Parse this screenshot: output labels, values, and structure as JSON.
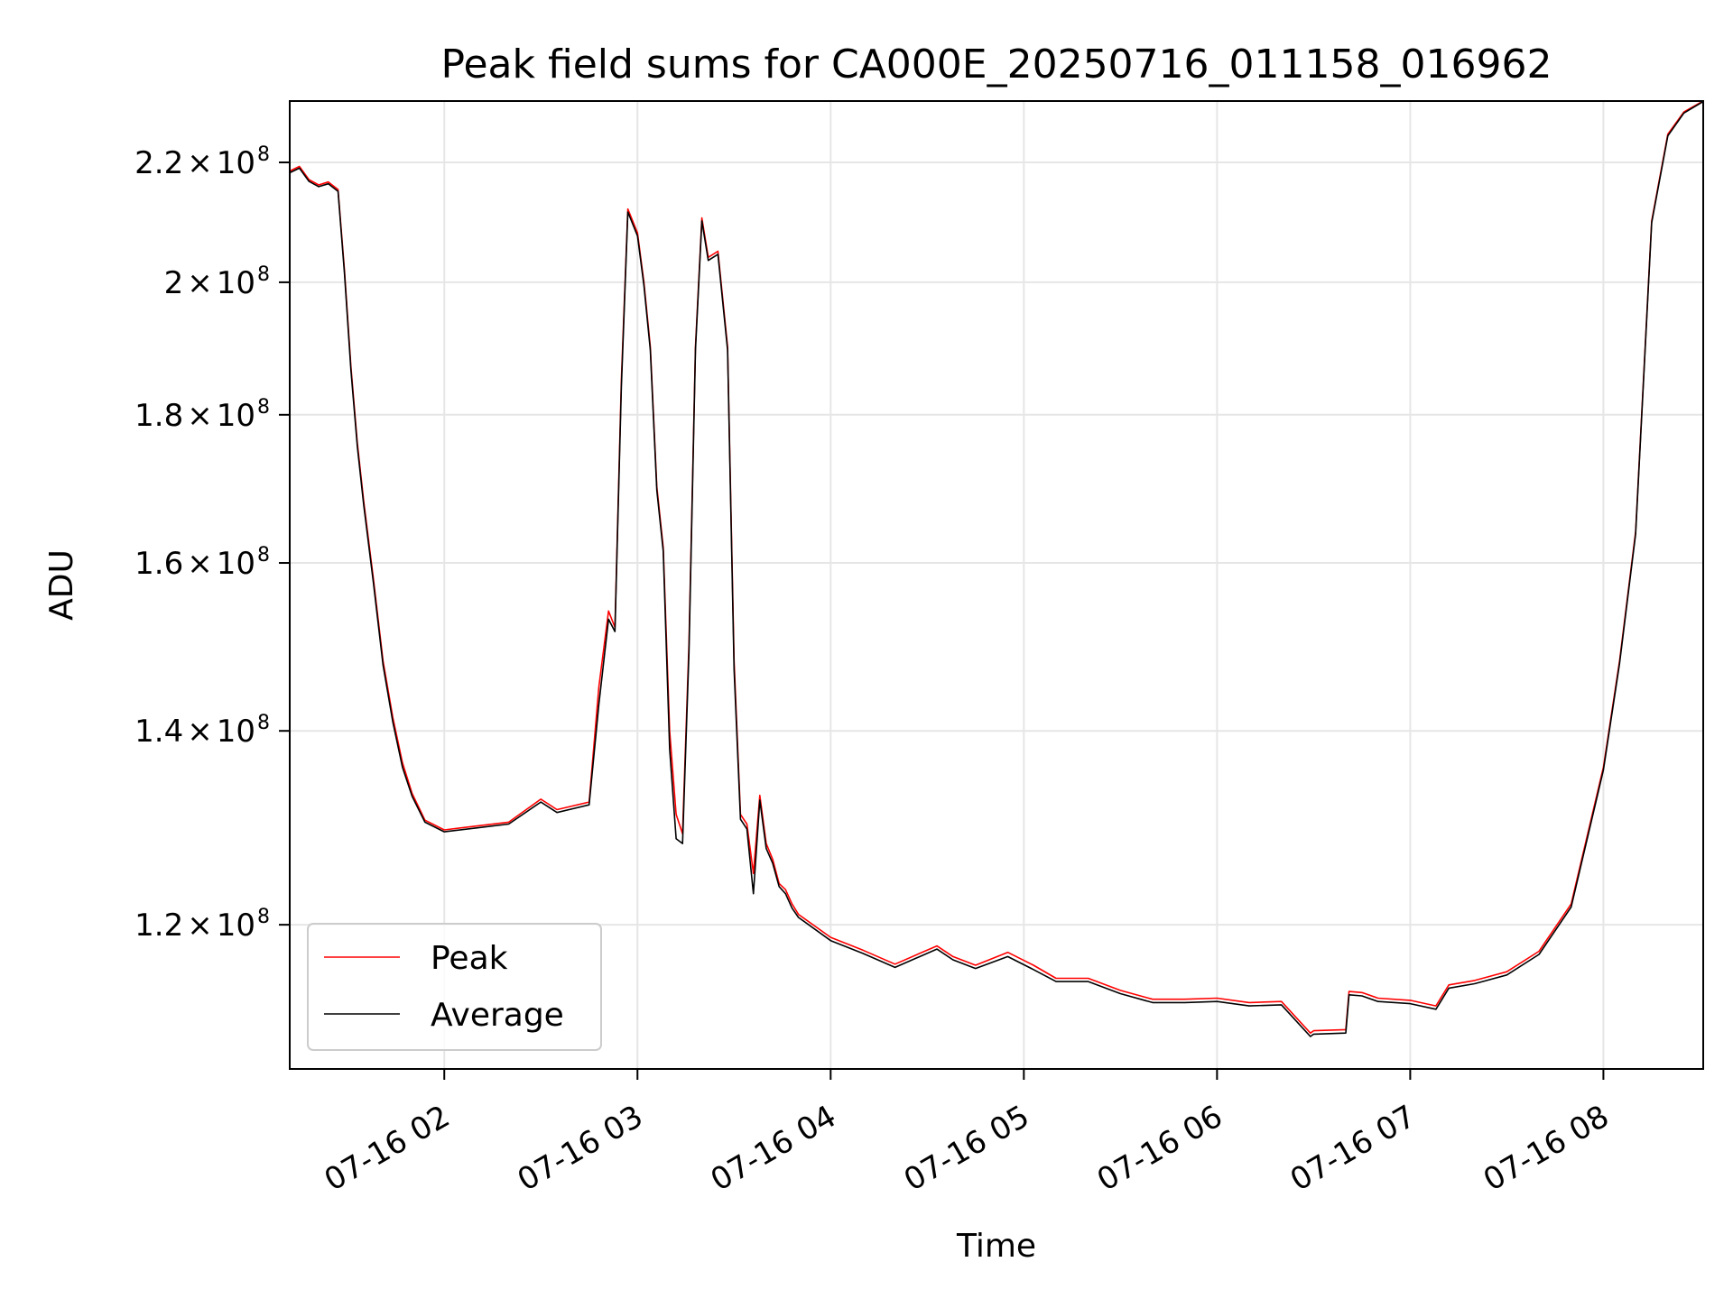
{
  "chart_data": {
    "type": "line",
    "title": "Peak field sums for CA000E_20250716_011158_016962",
    "xlabel": "Time",
    "ylabel": "ADU",
    "y_scale": "log",
    "grid": true,
    "legend_position": "lower-left",
    "xlim": [
      "2025-07-16 01:12",
      "2025-07-16 08:31"
    ],
    "ylim": [
      107000000,
      231000000
    ],
    "x_ticks": [
      {
        "value": "2025-07-16 02:00",
        "label": "07-16 02"
      },
      {
        "value": "2025-07-16 03:00",
        "label": "07-16 03"
      },
      {
        "value": "2025-07-16 04:00",
        "label": "07-16 04"
      },
      {
        "value": "2025-07-16 05:00",
        "label": "07-16 05"
      },
      {
        "value": "2025-07-16 06:00",
        "label": "07-16 06"
      },
      {
        "value": "2025-07-16 07:00",
        "label": "07-16 07"
      },
      {
        "value": "2025-07-16 08:00",
        "label": "07-16 08"
      }
    ],
    "y_ticks": [
      {
        "value": 120000000,
        "mantissa": "1.2",
        "times": "×",
        "base": "10",
        "exp": "8"
      },
      {
        "value": 140000000,
        "mantissa": "1.4",
        "times": "×",
        "base": "10",
        "exp": "8"
      },
      {
        "value": 160000000,
        "mantissa": "1.6",
        "times": "×",
        "base": "10",
        "exp": "8"
      },
      {
        "value": 180000000,
        "mantissa": "1.8",
        "times": "×",
        "base": "10",
        "exp": "8"
      },
      {
        "value": 200000000,
        "mantissa": "2",
        "times": "×",
        "base": "10",
        "exp": "8"
      },
      {
        "value": 220000000,
        "mantissa": "2.2",
        "times": "×",
        "base": "10",
        "exp": "8"
      }
    ],
    "series": [
      {
        "name": "Peak",
        "color": "#ff0000",
        "x": [
          "2025-07-16 01:12",
          "2025-07-16 01:15",
          "2025-07-16 01:18",
          "2025-07-16 01:21",
          "2025-07-16 01:24",
          "2025-07-16 01:27",
          "2025-07-16 01:29",
          "2025-07-16 01:31",
          "2025-07-16 01:33",
          "2025-07-16 01:35",
          "2025-07-16 01:38",
          "2025-07-16 01:41",
          "2025-07-16 01:44",
          "2025-07-16 01:47",
          "2025-07-16 01:50",
          "2025-07-16 01:54",
          "2025-07-16 02:00",
          "2025-07-16 02:10",
          "2025-07-16 02:20",
          "2025-07-16 02:30",
          "2025-07-16 02:35",
          "2025-07-16 02:45",
          "2025-07-16 02:48",
          "2025-07-16 02:51",
          "2025-07-16 02:53",
          "2025-07-16 02:55",
          "2025-07-16 02:57",
          "2025-07-16 03:00",
          "2025-07-16 03:02",
          "2025-07-16 03:04",
          "2025-07-16 03:06",
          "2025-07-16 03:08",
          "2025-07-16 03:10",
          "2025-07-16 03:12",
          "2025-07-16 03:14",
          "2025-07-16 03:16",
          "2025-07-16 03:18",
          "2025-07-16 03:20",
          "2025-07-16 03:22",
          "2025-07-16 03:25",
          "2025-07-16 03:28",
          "2025-07-16 03:30",
          "2025-07-16 03:32",
          "2025-07-16 03:34",
          "2025-07-16 03:36",
          "2025-07-16 03:38",
          "2025-07-16 03:40",
          "2025-07-16 03:42",
          "2025-07-16 03:44",
          "2025-07-16 03:46",
          "2025-07-16 03:48",
          "2025-07-16 03:50",
          "2025-07-16 04:00",
          "2025-07-16 04:10",
          "2025-07-16 04:20",
          "2025-07-16 04:33",
          "2025-07-16 04:38",
          "2025-07-16 04:45",
          "2025-07-16 04:55",
          "2025-07-16 05:03",
          "2025-07-16 05:10",
          "2025-07-16 05:20",
          "2025-07-16 05:30",
          "2025-07-16 05:40",
          "2025-07-16 05:50",
          "2025-07-16 06:00",
          "2025-07-16 06:10",
          "2025-07-16 06:20",
          "2025-07-16 06:29",
          "2025-07-16 06:30",
          "2025-07-16 06:40",
          "2025-07-16 06:41",
          "2025-07-16 06:45",
          "2025-07-16 06:50",
          "2025-07-16 07:00",
          "2025-07-16 07:08",
          "2025-07-16 07:12",
          "2025-07-16 07:20",
          "2025-07-16 07:30",
          "2025-07-16 07:40",
          "2025-07-16 07:50",
          "2025-07-16 08:00",
          "2025-07-16 08:05",
          "2025-07-16 08:10",
          "2025-07-16 08:15",
          "2025-07-16 08:20",
          "2025-07-16 08:25",
          "2025-07-16 08:31"
        ],
        "y": [
          218500000,
          219300000,
          217000000,
          216100000,
          216600000,
          215300000,
          202000000,
          187000000,
          176000000,
          168000000,
          158000000,
          148000000,
          141500000,
          136500000,
          133200000,
          130400000,
          129400000,
          129800000,
          130200000,
          132600000,
          131500000,
          132300000,
          145000000,
          154000000,
          152000000,
          185000000,
          212000000,
          208000000,
          200000000,
          190000000,
          170000000,
          162000000,
          140000000,
          131000000,
          129000000,
          150000000,
          190000000,
          210500000,
          204000000,
          205000000,
          190000000,
          148000000,
          131000000,
          130000000,
          125000000,
          133000000,
          128000000,
          126400000,
          124000000,
          123400000,
          122000000,
          121000000,
          118800000,
          117600000,
          116300000,
          118000000,
          117000000,
          116200000,
          117400000,
          116200000,
          115000000,
          115000000,
          113900000,
          113100000,
          113100000,
          113200000,
          112800000,
          112900000,
          110100000,
          110300000,
          110400000,
          113800000,
          113700000,
          113200000,
          113000000,
          112500000,
          114400000,
          114800000,
          115600000,
          117500000,
          122000000,
          136000000,
          148000000,
          164000000,
          210000000,
          225000000,
          229000000,
          231000000
        ]
      },
      {
        "name": "Average",
        "color": "#000000",
        "x": [
          "2025-07-16 01:12",
          "2025-07-16 01:15",
          "2025-07-16 01:18",
          "2025-07-16 01:21",
          "2025-07-16 01:24",
          "2025-07-16 01:27",
          "2025-07-16 01:29",
          "2025-07-16 01:31",
          "2025-07-16 01:33",
          "2025-07-16 01:35",
          "2025-07-16 01:38",
          "2025-07-16 01:41",
          "2025-07-16 01:44",
          "2025-07-16 01:47",
          "2025-07-16 01:50",
          "2025-07-16 01:54",
          "2025-07-16 02:00",
          "2025-07-16 02:10",
          "2025-07-16 02:20",
          "2025-07-16 02:30",
          "2025-07-16 02:35",
          "2025-07-16 02:45",
          "2025-07-16 02:48",
          "2025-07-16 02:51",
          "2025-07-16 02:53",
          "2025-07-16 02:55",
          "2025-07-16 02:57",
          "2025-07-16 03:00",
          "2025-07-16 03:02",
          "2025-07-16 03:04",
          "2025-07-16 03:06",
          "2025-07-16 03:08",
          "2025-07-16 03:10",
          "2025-07-16 03:12",
          "2025-07-16 03:14",
          "2025-07-16 03:16",
          "2025-07-16 03:18",
          "2025-07-16 03:20",
          "2025-07-16 03:22",
          "2025-07-16 03:25",
          "2025-07-16 03:28",
          "2025-07-16 03:30",
          "2025-07-16 03:32",
          "2025-07-16 03:34",
          "2025-07-16 03:36",
          "2025-07-16 03:38",
          "2025-07-16 03:40",
          "2025-07-16 03:42",
          "2025-07-16 03:44",
          "2025-07-16 03:46",
          "2025-07-16 03:48",
          "2025-07-16 03:50",
          "2025-07-16 04:00",
          "2025-07-16 04:10",
          "2025-07-16 04:20",
          "2025-07-16 04:33",
          "2025-07-16 04:38",
          "2025-07-16 04:45",
          "2025-07-16 04:55",
          "2025-07-16 05:03",
          "2025-07-16 05:10",
          "2025-07-16 05:20",
          "2025-07-16 05:30",
          "2025-07-16 05:40",
          "2025-07-16 05:50",
          "2025-07-16 06:00",
          "2025-07-16 06:10",
          "2025-07-16 06:20",
          "2025-07-16 06:29",
          "2025-07-16 06:30",
          "2025-07-16 06:40",
          "2025-07-16 06:41",
          "2025-07-16 06:45",
          "2025-07-16 06:50",
          "2025-07-16 07:00",
          "2025-07-16 07:08",
          "2025-07-16 07:12",
          "2025-07-16 07:20",
          "2025-07-16 07:30",
          "2025-07-16 07:40",
          "2025-07-16 07:50",
          "2025-07-16 08:00",
          "2025-07-16 08:05",
          "2025-07-16 08:10",
          "2025-07-16 08:15",
          "2025-07-16 08:20",
          "2025-07-16 08:25",
          "2025-07-16 08:31"
        ],
        "y": [
          218200000,
          219000000,
          216700000,
          215800000,
          216300000,
          215000000,
          201500000,
          186500000,
          175500000,
          167500000,
          157500000,
          147500000,
          141000000,
          136000000,
          132900000,
          130200000,
          129200000,
          129600000,
          130000000,
          132300000,
          131200000,
          132000000,
          143000000,
          153000000,
          151500000,
          184000000,
          211500000,
          207500000,
          199500000,
          189500000,
          169500000,
          161500000,
          138000000,
          128500000,
          128000000,
          149000000,
          189500000,
          210000000,
          203500000,
          204500000,
          189500000,
          147000000,
          130500000,
          129500000,
          123000000,
          132500000,
          127500000,
          126000000,
          123700000,
          123000000,
          121600000,
          120700000,
          118500000,
          117300000,
          116000000,
          117700000,
          116700000,
          115900000,
          117000000,
          115800000,
          114700000,
          114700000,
          113600000,
          112800000,
          112800000,
          112900000,
          112500000,
          112600000,
          109800000,
          110000000,
          110100000,
          113500000,
          113400000,
          112900000,
          112700000,
          112200000,
          114100000,
          114500000,
          115300000,
          117200000,
          121700000,
          135700000,
          147700000,
          163700000,
          209700000,
          224700000,
          228800000,
          230900000
        ]
      }
    ]
  }
}
